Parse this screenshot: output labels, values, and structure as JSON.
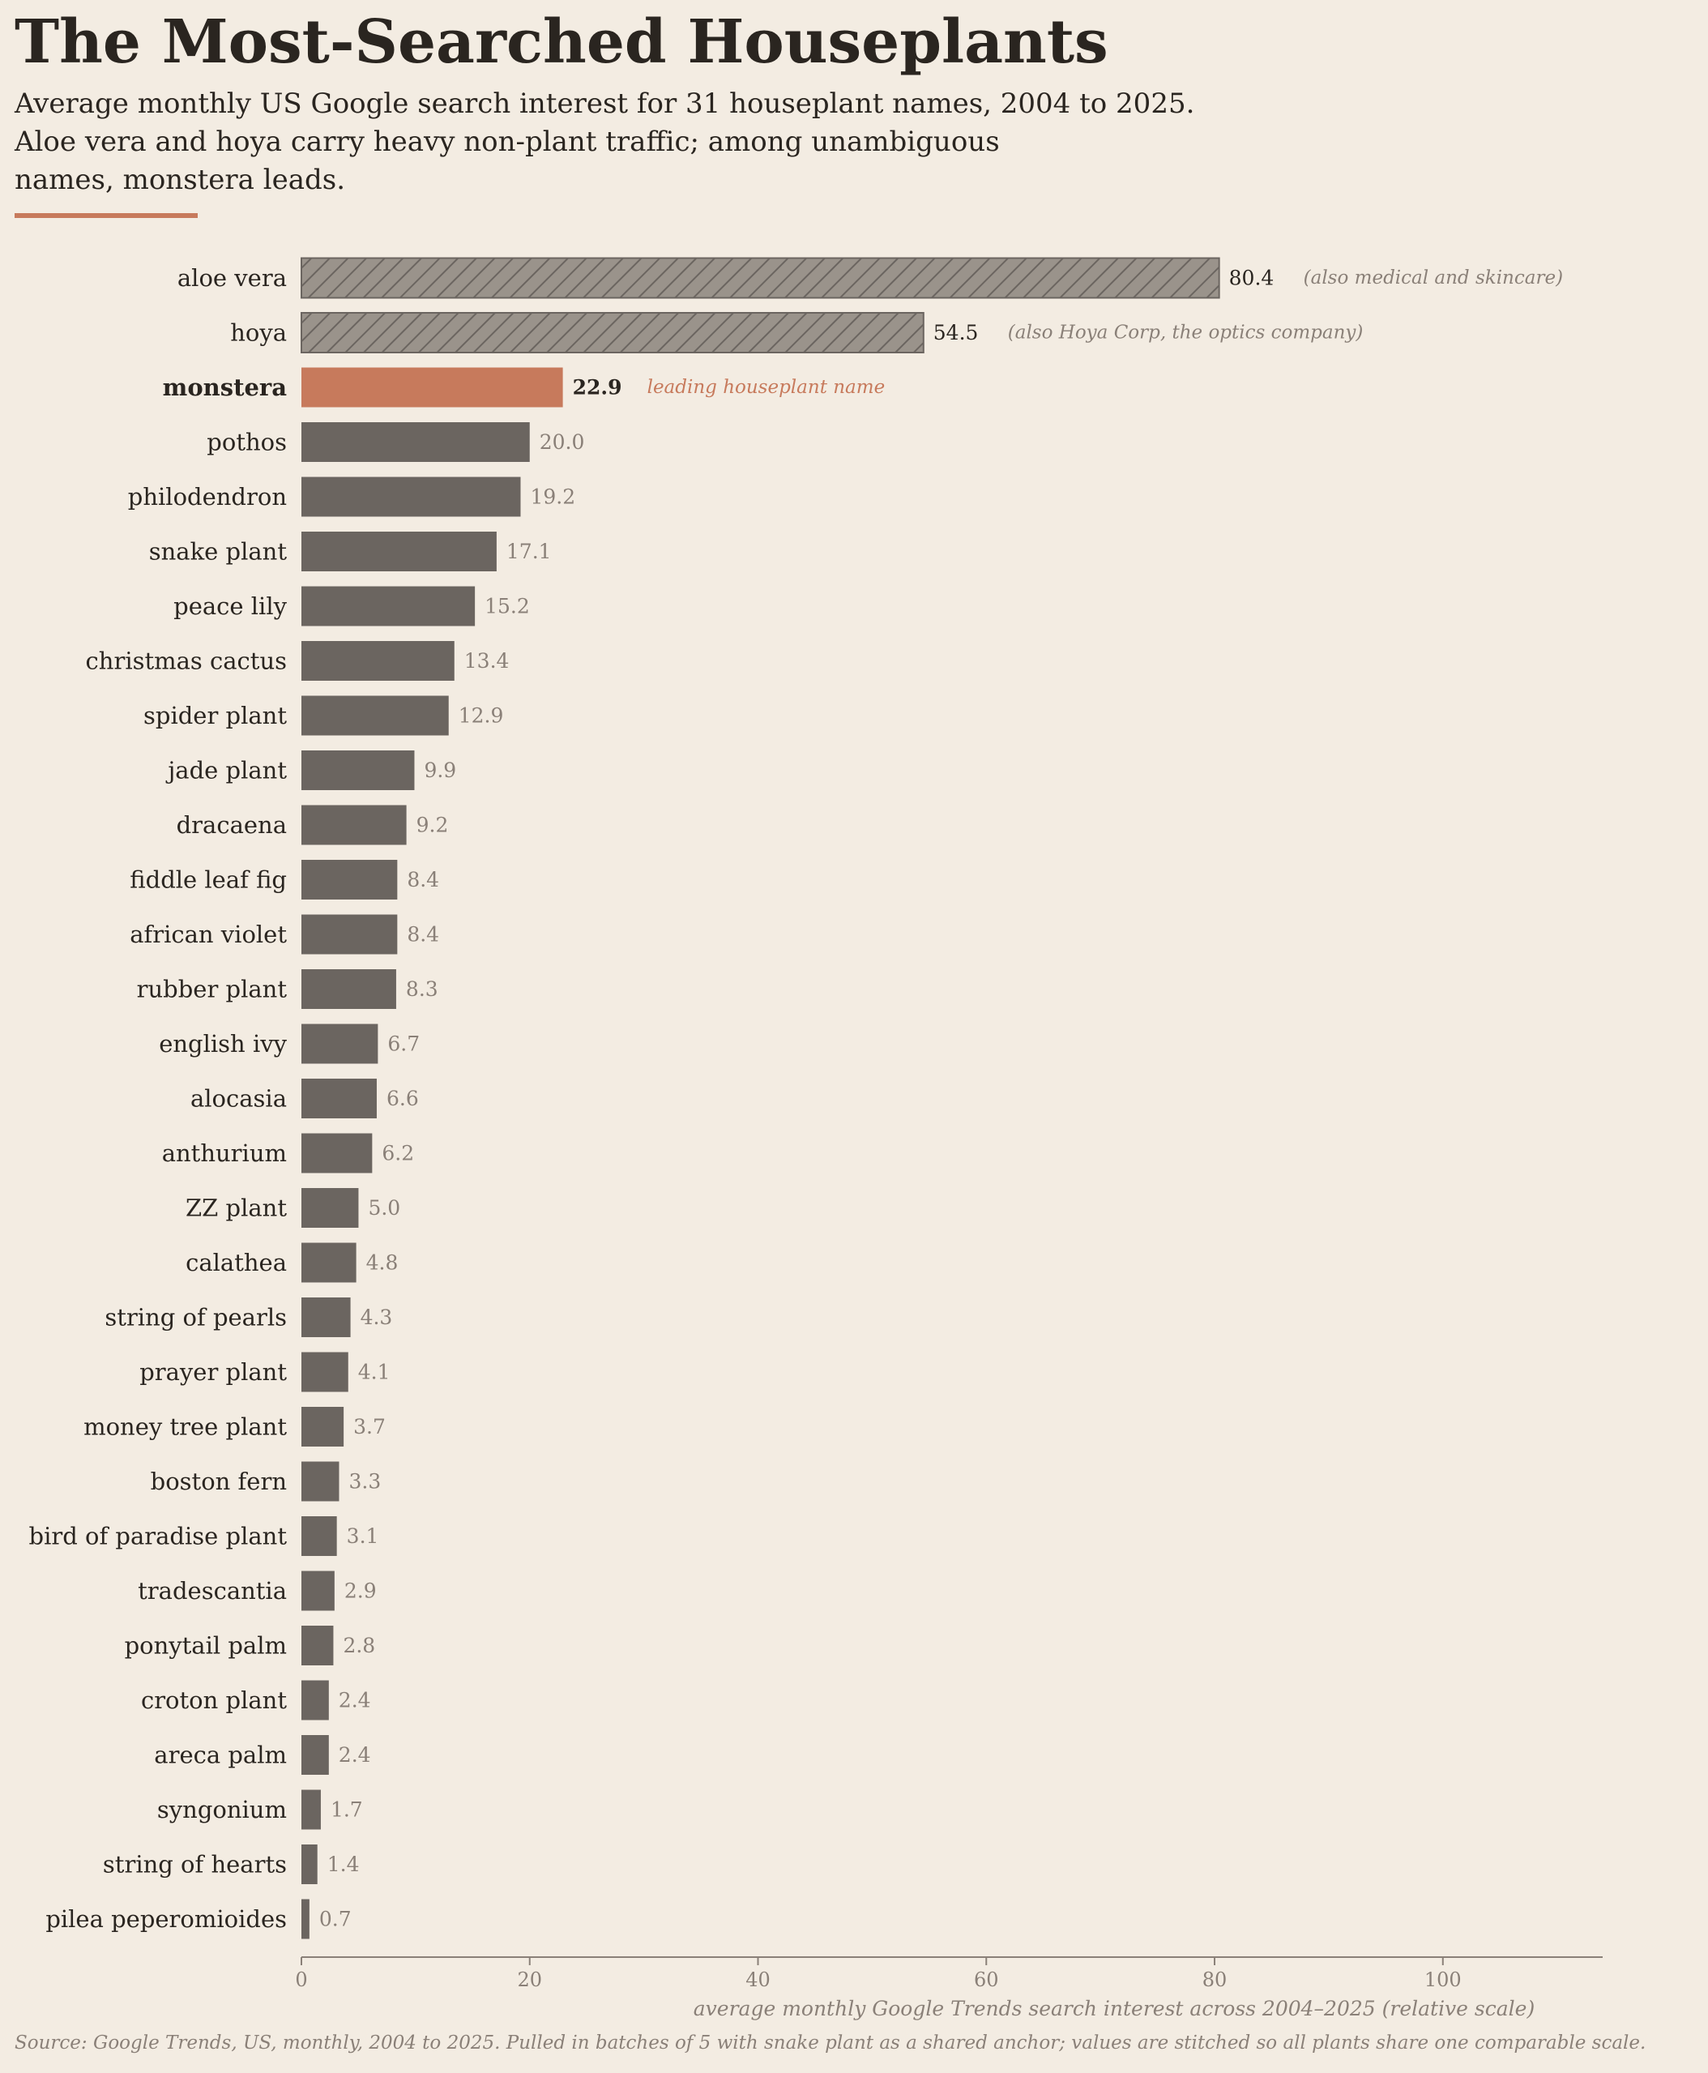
{
  "title": "The Most-Searched Houseplants",
  "subtitle": "Average monthly US Google search interest for 31 houseplant names, 2004 to 2025.\nAloe vera and hoya carry heavy non-plant traffic; among unambiguous\nnames, monstera leads.",
  "source": "Source: Google Trends, US, monthly, 2004 to 2025. Pulled in batches of 5 with snake plant as a shared anchor; values are stitched so all plants share one comparable scale.",
  "colors": {
    "background": "#f3ece2",
    "bar": "#6b6560",
    "highlight": "#c77a5c",
    "ambiguous_fill": "#9a938b",
    "ambiguous_hatch": "#6b6560",
    "text": "#2a2520",
    "muted": "#8a8078",
    "value_label": "#8a8078",
    "axis": "#8a8078"
  },
  "chart_data": {
    "type": "bar",
    "orientation": "horizontal",
    "xlabel": "average monthly Google Trends search interest across 2004–2025 (relative scale)",
    "xlim": [
      0,
      114
    ],
    "xticks": [
      0,
      20,
      40,
      60,
      80,
      100
    ],
    "grid": false,
    "legend": "none",
    "categories": [
      "aloe vera",
      "hoya",
      "monstera",
      "pothos",
      "philodendron",
      "snake plant",
      "peace lily",
      "christmas cactus",
      "spider plant",
      "jade plant",
      "dracaena",
      "fiddle leaf fig",
      "african violet",
      "rubber plant",
      "english ivy",
      "alocasia",
      "anthurium",
      "ZZ plant",
      "calathea",
      "string of pearls",
      "prayer plant",
      "money tree plant",
      "boston fern",
      "bird of paradise plant",
      "tradescantia",
      "ponytail palm",
      "croton plant",
      "areca palm",
      "syngonium",
      "string of hearts",
      "pilea peperomioides"
    ],
    "values": [
      80.4,
      54.5,
      22.9,
      20.0,
      19.2,
      17.1,
      15.2,
      13.4,
      12.9,
      9.9,
      9.2,
      8.4,
      8.4,
      8.3,
      6.7,
      6.6,
      6.2,
      5.0,
      4.8,
      4.3,
      4.1,
      3.7,
      3.3,
      3.1,
      2.9,
      2.8,
      2.4,
      2.4,
      1.7,
      1.4,
      0.7
    ],
    "value_labels": [
      "80.4",
      "54.5",
      "22.9",
      "20.0",
      "19.2",
      "17.1",
      "15.2",
      "13.4",
      "12.9",
      "9.9",
      "9.2",
      "8.4",
      "8.4",
      "8.3",
      "6.7",
      "6.6",
      "6.2",
      "5.0",
      "4.8",
      "4.3",
      "4.1",
      "3.7",
      "3.3",
      "3.1",
      "2.9",
      "2.8",
      "2.4",
      "2.4",
      "1.7",
      "1.4",
      "0.7"
    ],
    "styles": [
      "ambiguous",
      "ambiguous",
      "highlight",
      "normal",
      "normal",
      "normal",
      "normal",
      "normal",
      "normal",
      "normal",
      "normal",
      "normal",
      "normal",
      "normal",
      "normal",
      "normal",
      "normal",
      "normal",
      "normal",
      "normal",
      "normal",
      "normal",
      "normal",
      "normal",
      "normal",
      "normal",
      "normal",
      "normal",
      "normal",
      "normal",
      "normal"
    ],
    "annotations": [
      {
        "category": "aloe vera",
        "text": "(also medical and skincare)",
        "style": "muted"
      },
      {
        "category": "hoya",
        "text": "(also Hoya Corp, the optics company)",
        "style": "muted"
      },
      {
        "category": "monstera",
        "text": "leading houseplant name",
        "style": "highlight"
      }
    ]
  }
}
